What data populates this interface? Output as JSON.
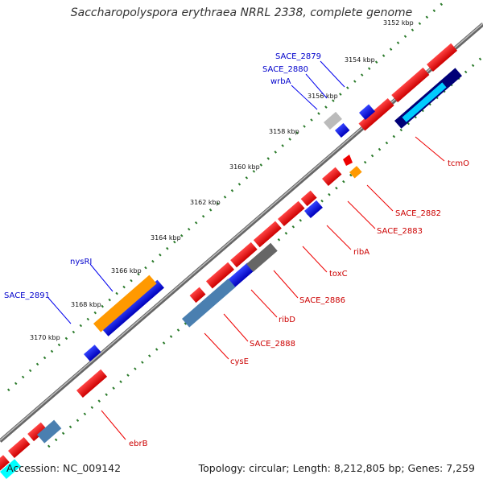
{
  "title": "Saccharopolyspora erythraea NRRL 2338, complete genome",
  "footer": {
    "accession": "Accession: NC_009142",
    "stats": "Topology: circular; Length: 8,212,805 bp; Genes: 7,259"
  },
  "colors": {
    "forward": "#ee0000",
    "reverse": "#0000ee",
    "label_forward": "#cc0000",
    "label_reverse": "#0000cc"
  },
  "ticks": [
    "3152 kbp",
    "3154 kbp",
    "3156 kbp",
    "3158 kbp",
    "3160 kbp",
    "3162 kbp",
    "3164 kbp",
    "3166 kbp",
    "3168 kbp",
    "3170 kbp"
  ],
  "gene_labels": [
    "SACE_2879",
    "SACE_2880",
    "wrbA",
    "nysRI",
    "SACE_2891",
    "tcmO",
    "SACE_2882",
    "SACE_2883",
    "ribA",
    "toxC",
    "SACE_2886",
    "ribD",
    "SACE_2888",
    "cysE",
    "ebrB"
  ]
}
